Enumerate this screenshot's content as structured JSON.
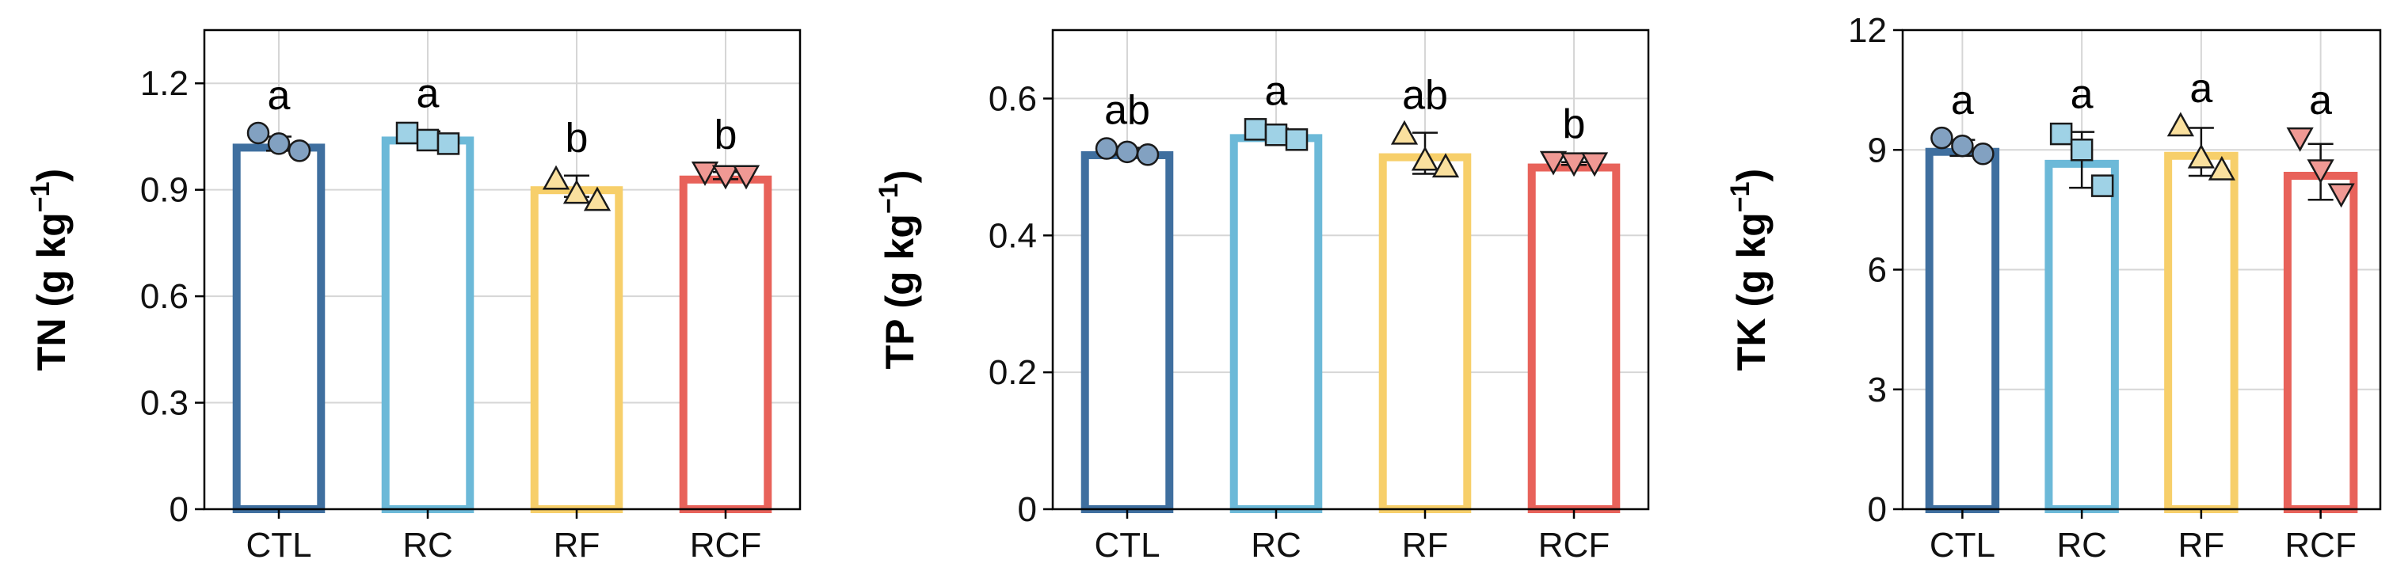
{
  "colors": {
    "CTL": "#3f6f9f",
    "RC": "#6cb9d8",
    "RF": "#f7cf6a",
    "RCF": "#e8625a",
    "grid": "#d6d6d6",
    "axis": "#000000"
  },
  "chart_data": [
    {
      "type": "bar",
      "id": "TN",
      "ylabel_main": "TN (g kg",
      "ylabel_sup": "−1",
      "ylabel_close": ")",
      "categories": [
        "CTL",
        "RC",
        "RF",
        "RCF"
      ],
      "marker_shapes": [
        "circle",
        "square",
        "triangle-up",
        "triangle-down"
      ],
      "values": [
        1.03,
        1.05,
        0.91,
        0.94
      ],
      "errors": [
        0.02,
        0.015,
        0.03,
        0.01
      ],
      "points": [
        [
          1.06,
          1.03,
          1.01
        ],
        [
          1.06,
          1.04,
          1.03
        ],
        [
          0.93,
          0.89,
          0.87
        ],
        [
          0.95,
          0.94,
          0.94
        ]
      ],
      "letters": [
        "a",
        "a",
        "b",
        "b"
      ],
      "ylim": [
        0,
        1.35
      ],
      "yticks": [
        0,
        0.3,
        0.6,
        0.9,
        1.2
      ],
      "ytick_labels": [
        "0",
        "0.3",
        "0.6",
        "0.9",
        "1.2"
      ],
      "grid": true
    },
    {
      "type": "bar",
      "id": "TP",
      "ylabel_main": "TP (g kg",
      "ylabel_sup": "−1",
      "ylabel_close": ")",
      "categories": [
        "CTL",
        "RC",
        "RF",
        "RCF"
      ],
      "marker_shapes": [
        "circle",
        "square",
        "triangle-up",
        "triangle-down"
      ],
      "values": [
        0.523,
        0.548,
        0.52,
        0.505
      ],
      "errors": [
        0.005,
        0.008,
        0.03,
        0.002
      ],
      "points": [
        [
          0.527,
          0.522,
          0.518
        ],
        [
          0.555,
          0.547,
          0.54
        ],
        [
          0.548,
          0.51,
          0.5
        ],
        [
          0.508,
          0.506,
          0.506
        ]
      ],
      "letters": [
        "ab",
        "a",
        "ab",
        "b"
      ],
      "ylim": [
        0,
        0.7
      ],
      "yticks": [
        0,
        0.2,
        0.4,
        0.6
      ],
      "ytick_labels": [
        "0",
        "0.2",
        "0.4",
        "0.6"
      ],
      "grid": true
    },
    {
      "type": "bar",
      "id": "TK",
      "ylabel_main": "TK (g kg",
      "ylabel_sup": "−1",
      "ylabel_close": ")",
      "categories": [
        "CTL",
        "RC",
        "RF",
        "RCF"
      ],
      "marker_shapes": [
        "circle",
        "square",
        "triangle-up",
        "triangle-down"
      ],
      "values": [
        9.05,
        8.75,
        8.95,
        8.45
      ],
      "errors": [
        0.2,
        0.7,
        0.6,
        0.7
      ],
      "points": [
        [
          9.3,
          9.1,
          8.9
        ],
        [
          9.4,
          9.0,
          8.1
        ],
        [
          9.6,
          8.8,
          8.5
        ],
        [
          9.3,
          8.5,
          7.9
        ]
      ],
      "letters": [
        "a",
        "a",
        "a",
        "a"
      ],
      "ylim": [
        0,
        12
      ],
      "yticks": [
        0,
        3,
        6,
        9,
        12
      ],
      "ytick_labels": [
        "0",
        "3",
        "6",
        "9",
        "12"
      ],
      "grid": true
    }
  ]
}
